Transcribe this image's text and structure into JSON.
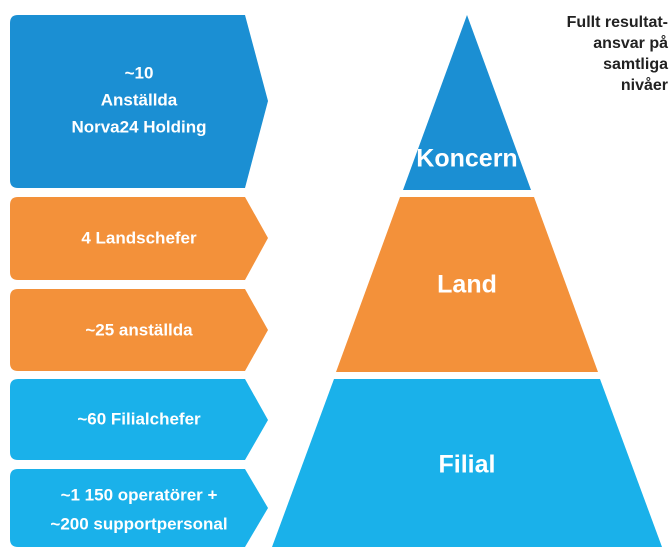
{
  "boxes": [
    {
      "lines": [
        "~10",
        "Anställda",
        "Norva24 Holding"
      ]
    },
    {
      "lines": [
        "4 Landschefer"
      ]
    },
    {
      "lines": [
        "~25 anställda"
      ]
    },
    {
      "lines": [
        "~60 Filialchefer"
      ]
    },
    {
      "lines": [
        "~1 150 operatörer +",
        "~200 supportpersonal"
      ]
    }
  ],
  "pyramid": {
    "levels": [
      {
        "label": "Koncern"
      },
      {
        "label": "Land"
      },
      {
        "label": "Filial"
      }
    ]
  },
  "note": {
    "lines": [
      "Fullt resultat-",
      "ansvar på",
      "samtliga",
      "nivåer"
    ]
  }
}
